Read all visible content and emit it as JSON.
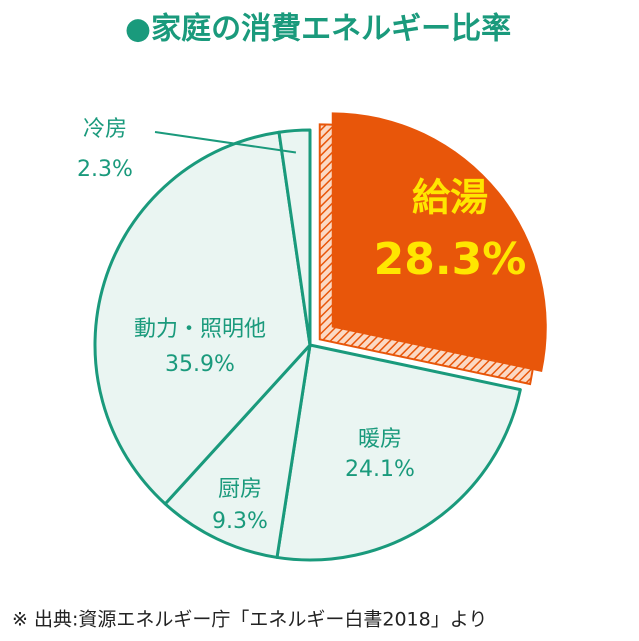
{
  "chart_data": {
    "type": "pie",
    "title": "●家庭の消費エネルギー比率",
    "categories": [
      "給湯",
      "暖房",
      "厨房",
      "動力・照明他",
      "冷房"
    ],
    "values": [
      28.3,
      24.1,
      9.3,
      35.9,
      2.3
    ],
    "value_labels": [
      "28.3%",
      "24.1%",
      "9.3%",
      "35.9%",
      "2.3%"
    ],
    "colors": [
      "#e8560a",
      "#eaf5f2",
      "#eaf5f2",
      "#eaf5f2",
      "#eaf5f2"
    ],
    "stroke": "#1a9a7c",
    "highlight_text_color": "#ffe600",
    "source": "※ 出典:資源エネルギー庁「エネルギー白書2018」より"
  }
}
